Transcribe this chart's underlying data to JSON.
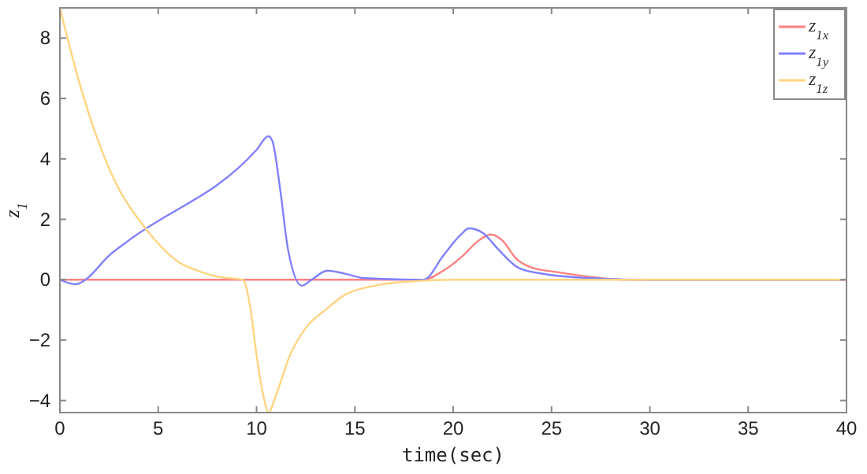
{
  "chart_data": {
    "type": "line",
    "xlabel": "time(sec)",
    "ylabel": "z$_{1}$",
    "xlim": [
      0,
      40
    ],
    "ylim": [
      -4.4,
      9
    ],
    "xticks": [
      0,
      5,
      10,
      15,
      20,
      25,
      30,
      35,
      40
    ],
    "yticks": [
      -4,
      -2,
      0,
      2,
      4,
      6,
      8
    ],
    "grid": false,
    "legend": "top right",
    "line_style": "solid",
    "marker": "none",
    "series": [
      {
        "name": "z$_{1x}$",
        "color": "#ff8080",
        "x": [
          0,
          18.5,
          19.5,
          20.5,
          21.3,
          21.9,
          22.5,
          23.2,
          24,
          25.3,
          29,
          40
        ],
        "values": [
          0,
          0,
          0.3,
          0.8,
          1.3,
          1.5,
          1.3,
          0.7,
          0.4,
          0.25,
          0,
          0
        ]
      },
      {
        "name": "z$_{1y}$",
        "color": "#8080ff",
        "x": [
          0,
          0.8,
          1.3,
          2.5,
          3.5,
          10,
          10.6,
          10.8,
          11.2,
          11.6,
          12.3,
          12.8,
          13.6,
          14.5,
          15.5,
          18.5,
          19.5,
          20.4,
          20.8,
          21.5,
          22.3,
          23.3,
          24.5,
          27,
          30,
          40
        ],
        "values": [
          0,
          -0.15,
          0,
          0.8,
          1.3,
          4.3,
          4.75,
          4.6,
          3,
          1,
          -0.2,
          0,
          0.3,
          0.2,
          0.05,
          0,
          0.8,
          1.5,
          1.7,
          1.55,
          1,
          0.4,
          0.2,
          0.05,
          0,
          0
        ]
      },
      {
        "name": "z$_{1z}$",
        "color": "#ffd480",
        "x": [
          0,
          1,
          2,
          3,
          4,
          5,
          6,
          7,
          8,
          9.3,
          9.7,
          10,
          10.4,
          10.6,
          11,
          11.7,
          12.5,
          13.5,
          14.5,
          16,
          18,
          20,
          40
        ],
        "values": [
          9,
          6.5,
          4.5,
          3,
          2,
          1.2,
          0.6,
          0.3,
          0.1,
          0,
          -1,
          -2.5,
          -4,
          -4.4,
          -3.8,
          -2.5,
          -1.6,
          -1,
          -0.5,
          -0.2,
          -0.05,
          0,
          0
        ]
      }
    ]
  }
}
